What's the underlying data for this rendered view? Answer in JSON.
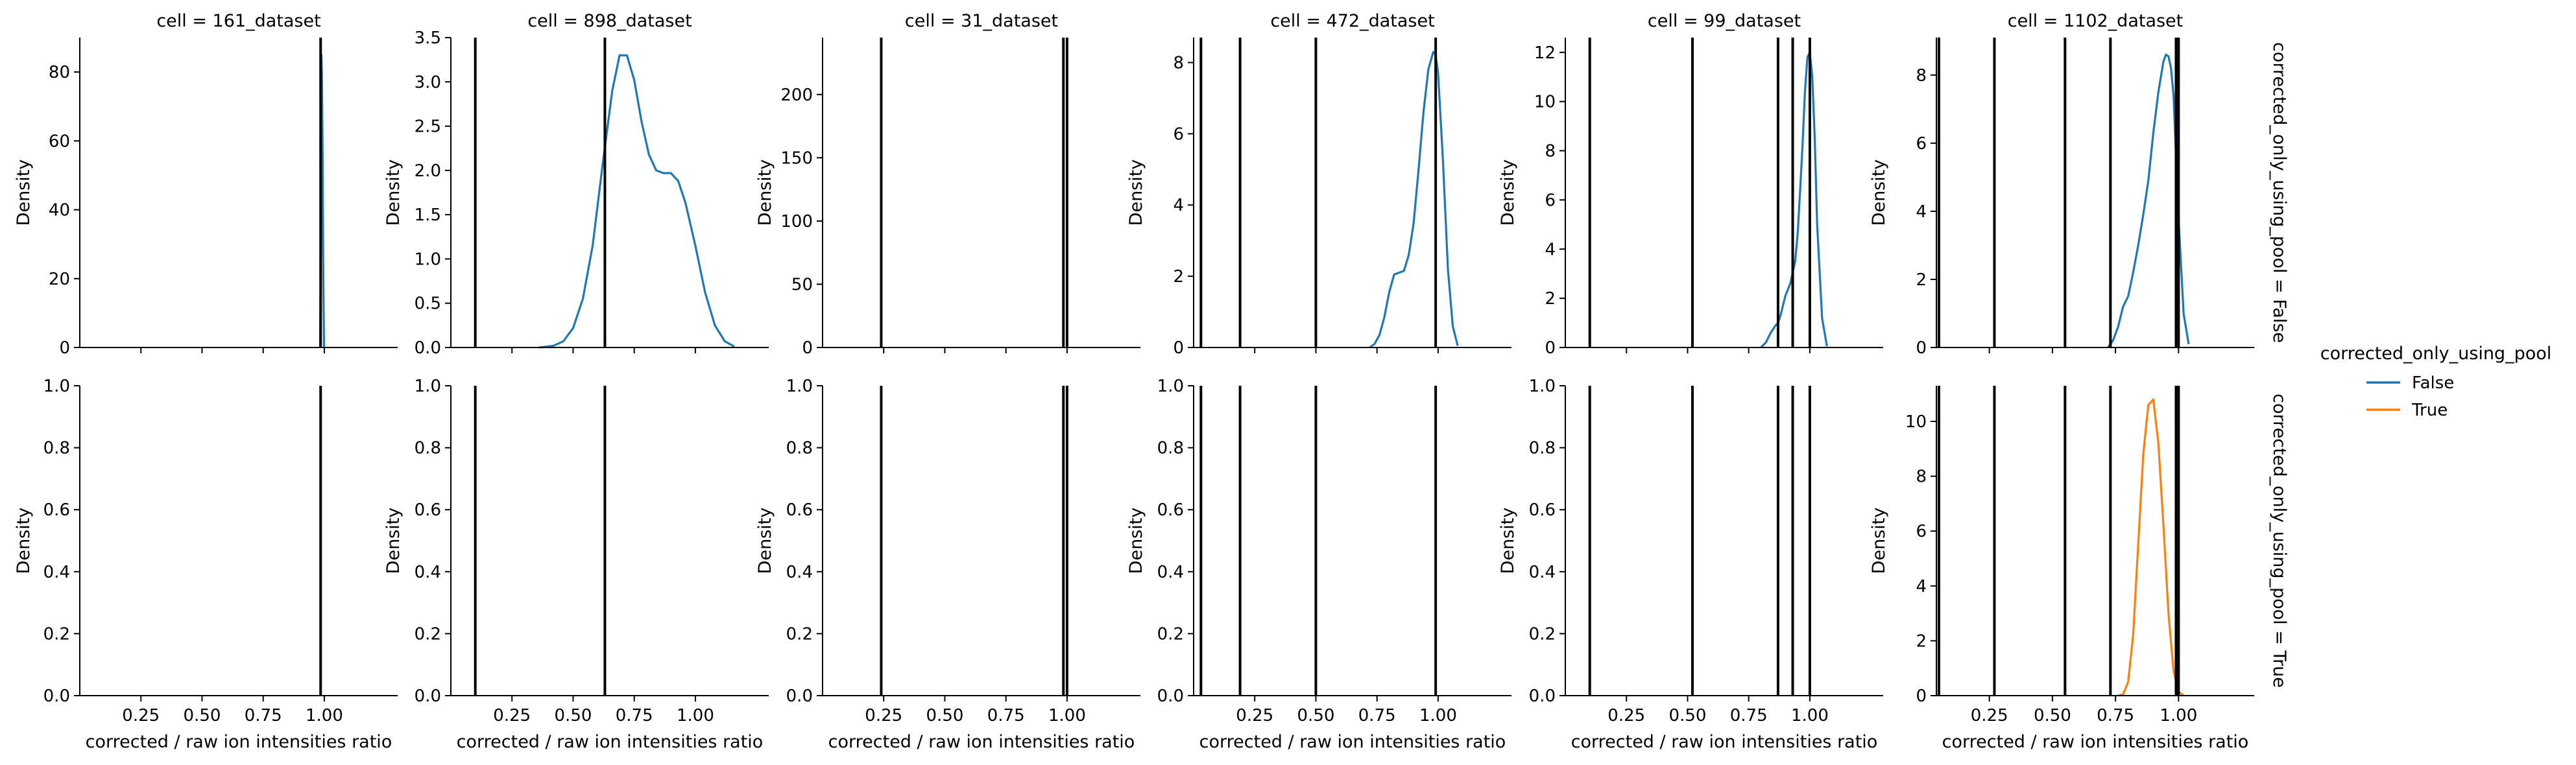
{
  "figure": {
    "legend": {
      "title": "corrected_only_using_pool",
      "placement": "right",
      "entries": [
        {
          "label": "False",
          "color": "#1f77b4"
        },
        {
          "label": "True",
          "color": "#ff7f0e"
        }
      ]
    },
    "row_titles": [
      "corrected_only_using_pool = False",
      "corrected_only_using_pool = True"
    ]
  },
  "chart_data": [
    {
      "type": "area",
      "title": "cell = 161_dataset",
      "row_title": "corrected_only_using_pool = False",
      "xlabel": "",
      "ylabel": "Density",
      "xlim": [
        0.0,
        1.3
      ],
      "ylim": [
        0,
        90
      ],
      "yticks": [
        0,
        20,
        40,
        60,
        80
      ],
      "xticks": [
        0.25,
        0.5,
        0.75,
        1.0
      ],
      "show_xtick_labels": false,
      "vlines": [
        0.985
      ],
      "series": [
        {
          "name": "False",
          "color": "#1f77b4",
          "x": [
            0.983,
            0.986,
            0.988,
            0.99,
            0.993,
            0.996,
            0.999
          ],
          "y": [
            0,
            30,
            85,
            80,
            56,
            20,
            0
          ]
        }
      ]
    },
    {
      "type": "area",
      "title": "cell = 898_dataset",
      "row_title": "corrected_only_using_pool = False",
      "xlabel": "",
      "ylabel": "Density",
      "xlim": [
        0.0,
        1.3
      ],
      "ylim": [
        0,
        3.5
      ],
      "yticks": [
        0.0,
        0.5,
        1.0,
        1.5,
        2.0,
        2.5,
        3.0,
        3.5
      ],
      "xticks": [
        0.25,
        0.5,
        0.75,
        1.0
      ],
      "show_xtick_labels": false,
      "vlines": [
        0.1,
        0.63
      ],
      "series": [
        {
          "name": "False",
          "color": "#1f77b4",
          "x": [
            0.36,
            0.42,
            0.46,
            0.5,
            0.54,
            0.58,
            0.62,
            0.66,
            0.69,
            0.72,
            0.75,
            0.78,
            0.81,
            0.84,
            0.87,
            0.9,
            0.93,
            0.96,
            1.0,
            1.04,
            1.08,
            1.12,
            1.16
          ],
          "y": [
            0.0,
            0.02,
            0.07,
            0.22,
            0.55,
            1.15,
            2.05,
            2.9,
            3.3,
            3.3,
            3.02,
            2.55,
            2.18,
            2.0,
            1.97,
            1.97,
            1.88,
            1.63,
            1.15,
            0.62,
            0.25,
            0.07,
            0.01
          ]
        }
      ]
    },
    {
      "type": "area",
      "title": "cell = 31_dataset",
      "row_title": "corrected_only_using_pool = False",
      "xlabel": "",
      "ylabel": "Density",
      "xlim": [
        0.0,
        1.3
      ],
      "ylim": [
        0,
        245
      ],
      "yticks": [
        0,
        50,
        100,
        150,
        200
      ],
      "xticks": [
        0.25,
        0.5,
        0.75,
        1.0
      ],
      "show_xtick_labels": false,
      "vlines": [
        0.24,
        0.985,
        1.0
      ],
      "series": []
    },
    {
      "type": "area",
      "title": "cell = 472_dataset",
      "row_title": "corrected_only_using_pool = False",
      "xlabel": "",
      "ylabel": "Density",
      "xlim": [
        0.0,
        1.3
      ],
      "ylim": [
        0,
        8.7
      ],
      "yticks": [
        0,
        2,
        4,
        6,
        8
      ],
      "xticks": [
        0.25,
        0.5,
        0.75,
        1.0
      ],
      "show_xtick_labels": false,
      "vlines": [
        0.03,
        0.19,
        0.5,
        0.99
      ],
      "series": [
        {
          "name": "False",
          "color": "#1f77b4",
          "x": [
            0.72,
            0.74,
            0.76,
            0.78,
            0.8,
            0.82,
            0.84,
            0.86,
            0.88,
            0.9,
            0.92,
            0.94,
            0.96,
            0.98,
            0.99,
            1.0,
            1.02,
            1.04,
            1.06,
            1.08
          ],
          "y": [
            0.0,
            0.1,
            0.35,
            0.85,
            1.55,
            2.05,
            2.1,
            2.15,
            2.6,
            3.5,
            5.0,
            6.6,
            7.8,
            8.3,
            8.2,
            7.7,
            5.2,
            2.2,
            0.6,
            0.05
          ]
        }
      ]
    },
    {
      "type": "area",
      "title": "cell = 99_dataset",
      "row_title": "corrected_only_using_pool = False",
      "xlabel": "",
      "ylabel": "Density",
      "xlim": [
        0.0,
        1.3
      ],
      "ylim": [
        0,
        12.6
      ],
      "yticks": [
        0,
        2,
        4,
        6,
        8,
        10,
        12
      ],
      "xticks": [
        0.25,
        0.5,
        0.75,
        1.0
      ],
      "show_xtick_labels": false,
      "vlines": [
        0.1,
        0.52,
        0.87,
        0.93,
        1.0
      ],
      "series": [
        {
          "name": "False",
          "color": "#1f77b4",
          "x": [
            0.8,
            0.82,
            0.84,
            0.86,
            0.87,
            0.88,
            0.9,
            0.92,
            0.94,
            0.95,
            0.96,
            0.97,
            0.98,
            0.99,
            1.0,
            1.01,
            1.02,
            1.03,
            1.05,
            1.07
          ],
          "y": [
            0.0,
            0.2,
            0.6,
            0.9,
            1.0,
            1.3,
            2.1,
            2.6,
            3.5,
            4.6,
            6.3,
            8.2,
            10.4,
            11.8,
            12.0,
            11.0,
            8.5,
            5.0,
            1.2,
            0.05
          ]
        }
      ]
    },
    {
      "type": "area",
      "title": "cell = 1102_dataset",
      "row_title": "corrected_only_using_pool = False",
      "xlabel": "",
      "ylabel": "Density",
      "xlim": [
        0.04,
        1.3
      ],
      "ylim": [
        0,
        9.1
      ],
      "yticks": [
        0,
        2,
        4,
        6,
        8
      ],
      "xticks": [
        0.25,
        0.5,
        0.75,
        1.0
      ],
      "show_xtick_labels": false,
      "vlines": [
        0.05,
        0.27,
        0.55,
        0.73,
        0.99,
        1.0
      ],
      "series": [
        {
          "name": "False",
          "color": "#1f77b4",
          "x": [
            0.72,
            0.74,
            0.76,
            0.78,
            0.8,
            0.82,
            0.84,
            0.86,
            0.88,
            0.9,
            0.92,
            0.94,
            0.95,
            0.96,
            0.97,
            0.98,
            0.99,
            1.0,
            1.02,
            1.04
          ],
          "y": [
            0.0,
            0.2,
            0.6,
            1.2,
            1.5,
            2.2,
            3.0,
            3.9,
            4.9,
            6.3,
            7.5,
            8.4,
            8.6,
            8.55,
            8.2,
            7.4,
            5.6,
            3.8,
            1.0,
            0.1
          ]
        }
      ]
    },
    {
      "type": "area",
      "title": "",
      "row_title": "corrected_only_using_pool = True",
      "xlabel": "corrected / raw ion intensities ratio",
      "ylabel": "Density",
      "xlim": [
        0.0,
        1.3
      ],
      "ylim": [
        0,
        1.0
      ],
      "yticks": [
        0.0,
        0.2,
        0.4,
        0.6,
        0.8,
        1.0
      ],
      "xticks": [
        0.25,
        0.5,
        0.75,
        1.0
      ],
      "show_xtick_labels": true,
      "vlines": [
        0.985
      ],
      "series": []
    },
    {
      "type": "area",
      "title": "",
      "row_title": "corrected_only_using_pool = True",
      "xlabel": "corrected / raw ion intensities ratio",
      "ylabel": "Density",
      "xlim": [
        0.0,
        1.3
      ],
      "ylim": [
        0,
        1.0
      ],
      "yticks": [
        0.0,
        0.2,
        0.4,
        0.6,
        0.8,
        1.0
      ],
      "xticks": [
        0.25,
        0.5,
        0.75,
        1.0
      ],
      "show_xtick_labels": true,
      "vlines": [
        0.1,
        0.63
      ],
      "series": []
    },
    {
      "type": "area",
      "title": "",
      "row_title": "corrected_only_using_pool = True",
      "xlabel": "corrected / raw ion intensities ratio",
      "ylabel": "Density",
      "xlim": [
        0.0,
        1.3
      ],
      "ylim": [
        0,
        1.0
      ],
      "yticks": [
        0.0,
        0.2,
        0.4,
        0.6,
        0.8,
        1.0
      ],
      "xticks": [
        0.25,
        0.5,
        0.75,
        1.0
      ],
      "show_xtick_labels": true,
      "vlines": [
        0.24,
        0.985,
        1.0
      ],
      "series": []
    },
    {
      "type": "area",
      "title": "",
      "row_title": "corrected_only_using_pool = True",
      "xlabel": "corrected / raw ion intensities ratio",
      "ylabel": "Density",
      "xlim": [
        0.0,
        1.3
      ],
      "ylim": [
        0,
        1.0
      ],
      "yticks": [
        0.0,
        0.2,
        0.4,
        0.6,
        0.8,
        1.0
      ],
      "xticks": [
        0.25,
        0.5,
        0.75,
        1.0
      ],
      "show_xtick_labels": true,
      "vlines": [
        0.03,
        0.19,
        0.5,
        0.99
      ],
      "series": []
    },
    {
      "type": "area",
      "title": "",
      "row_title": "corrected_only_using_pool = True",
      "xlabel": "corrected / raw ion intensities ratio",
      "ylabel": "Density",
      "xlim": [
        0.0,
        1.3
      ],
      "ylim": [
        0,
        1.0
      ],
      "yticks": [
        0.0,
        0.2,
        0.4,
        0.6,
        0.8,
        1.0
      ],
      "xticks": [
        0.25,
        0.5,
        0.75,
        1.0
      ],
      "show_xtick_labels": true,
      "vlines": [
        0.1,
        0.52,
        0.87,
        0.93,
        1.0
      ],
      "series": []
    },
    {
      "type": "area",
      "title": "",
      "row_title": "corrected_only_using_pool = True",
      "xlabel": "corrected / raw ion intensities ratio",
      "ylabel": "Density",
      "xlim": [
        0.04,
        1.3
      ],
      "ylim": [
        0,
        11.3
      ],
      "yticks": [
        0,
        2,
        4,
        6,
        8,
        10
      ],
      "xticks": [
        0.25,
        0.5,
        0.75,
        1.0
      ],
      "show_xtick_labels": true,
      "vlines": [
        0.05,
        0.27,
        0.55,
        0.73,
        0.99,
        1.0
      ],
      "series": [
        {
          "name": "True",
          "color": "#ff7f0e",
          "x": [
            0.76,
            0.78,
            0.8,
            0.82,
            0.84,
            0.86,
            0.88,
            0.9,
            0.92,
            0.94,
            0.96,
            0.98,
            1.0,
            1.02
          ],
          "y": [
            0.0,
            0.05,
            0.5,
            2.2,
            5.5,
            8.8,
            10.6,
            10.8,
            9.2,
            6.2,
            3.0,
            0.9,
            0.15,
            0.0
          ]
        }
      ]
    }
  ]
}
